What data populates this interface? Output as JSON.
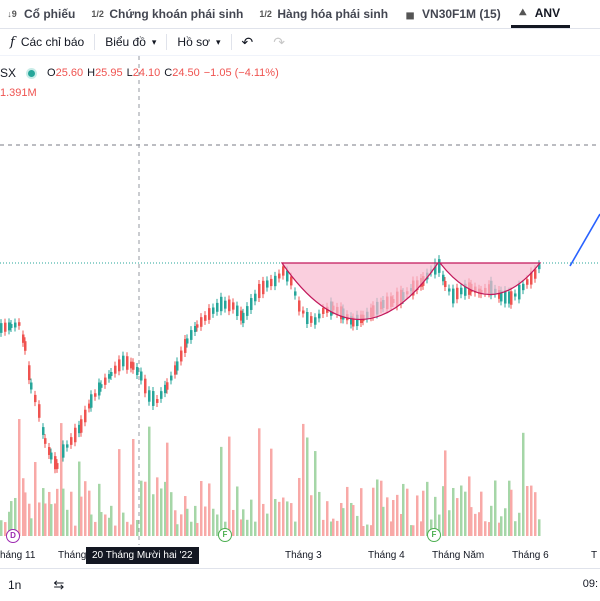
{
  "tabs": [
    {
      "label": "Cổ phiếu",
      "icon": "stock-icon"
    },
    {
      "label": "Chứng khoán phái sinh",
      "icon": "derivatives-icon"
    },
    {
      "label": "Hàng hóa phái sinh",
      "icon": "commodity-icon"
    },
    {
      "label": "VN30F1M (15)",
      "icon": "futures-icon"
    },
    {
      "label": "ANV",
      "icon": "chart-icon"
    }
  ],
  "toolbar": {
    "indicators_label": "Các chỉ báo",
    "chart_type_label": "Biểu đồ",
    "profile_label": "Hồ sơ"
  },
  "legend": {
    "symbol": "SX",
    "open_key": "O",
    "open_val": "25.60",
    "high_key": "H",
    "high_val": "25.95",
    "low_key": "L",
    "low_val": "24.10",
    "close_key": "C",
    "close_val": "24.50",
    "change": "−1.05 (−4.11%)",
    "volume": "1.391M"
  },
  "axis": {
    "labels": [
      "háng 11",
      "Tháng",
      "Tháng 3",
      "Tháng 4",
      "Tháng Năm",
      "Tháng 6",
      "T"
    ],
    "crosshair_date": "20 Tháng Mười hai '22"
  },
  "markers": {
    "d": "D",
    "f1": "F",
    "f2": "F"
  },
  "bottom": {
    "range": "1n",
    "time": "09:"
  },
  "colors": {
    "up": "#26a69a",
    "down": "#ef5350",
    "pattern_fill": "#f8bbd0",
    "pattern_stroke": "#c2185b",
    "trend": "#2962ff"
  }
}
